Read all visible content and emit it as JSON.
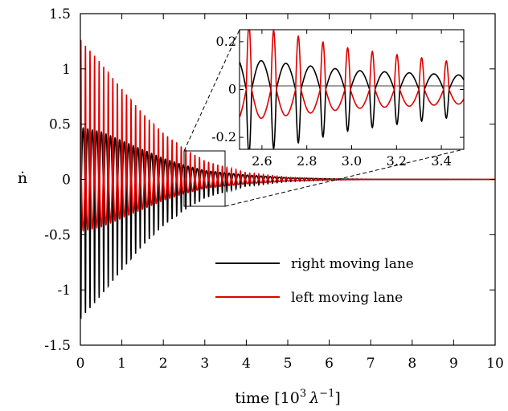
{
  "chart_data": {
    "type": "line",
    "title": "",
    "xlabel": "time [10",
    "xlabel_exp": "3",
    "xlabel_unit": "λ",
    "xlabel_unit_exp": "−1",
    "xlabel_close": "]",
    "ylabel": "ṅ",
    "xlim": [
      0,
      10
    ],
    "ylim": [
      -1.5,
      1.5
    ],
    "x_ticks": [
      "0",
      "1",
      "2",
      "3",
      "4",
      "5",
      "6",
      "7",
      "8",
      "9",
      "10"
    ],
    "y_ticks": [
      "-1.5",
      "-1",
      "-0.5",
      "0",
      "0.5",
      "1",
      "1.5"
    ],
    "grid": false,
    "legend_position": "lower-right",
    "series": [
      {
        "name": "right moving lane",
        "color": "#000000",
        "period": 0.11,
        "amplitude_envelope": {
          "x": [
            0,
            0.5,
            1,
            1.5,
            2,
            2.5,
            3,
            3.5,
            4,
            5,
            6,
            7,
            10
          ],
          "max": [
            0.47,
            0.43,
            0.35,
            0.27,
            0.19,
            0.13,
            0.08,
            0.06,
            0.04,
            0.015,
            0.005,
            0.001,
            0
          ],
          "min": [
            -1.27,
            -1.05,
            -0.82,
            -0.6,
            -0.42,
            -0.28,
            -0.17,
            -0.11,
            -0.06,
            -0.02,
            -0.006,
            -0.001,
            0
          ]
        }
      },
      {
        "name": "left moving lane",
        "color": "#e00000",
        "period": 0.11,
        "amplitude_envelope": {
          "x": [
            0,
            0.5,
            1,
            1.5,
            2,
            2.5,
            3,
            3.5,
            4,
            5,
            6,
            7,
            10
          ],
          "max": [
            1.27,
            1.05,
            0.82,
            0.6,
            0.42,
            0.28,
            0.17,
            0.11,
            0.06,
            0.02,
            0.006,
            0.001,
            0
          ],
          "min": [
            -0.47,
            -0.43,
            -0.35,
            -0.27,
            -0.19,
            -0.13,
            -0.08,
            -0.06,
            -0.04,
            -0.015,
            -0.005,
            -0.001,
            0
          ]
        }
      }
    ],
    "inset": {
      "xlim": [
        2.5,
        3.5
      ],
      "ylim": [
        -0.25,
        0.25
      ],
      "x_ticks": [
        "2.6",
        "2.8",
        "3.0",
        "3.2",
        "3.4"
      ],
      "y_ticks": [
        "-0.2",
        "0",
        "0.2"
      ],
      "zoom_box_x": [
        2.5,
        3.5
      ],
      "zoom_box_y": [
        -0.25,
        0.25
      ]
    }
  }
}
